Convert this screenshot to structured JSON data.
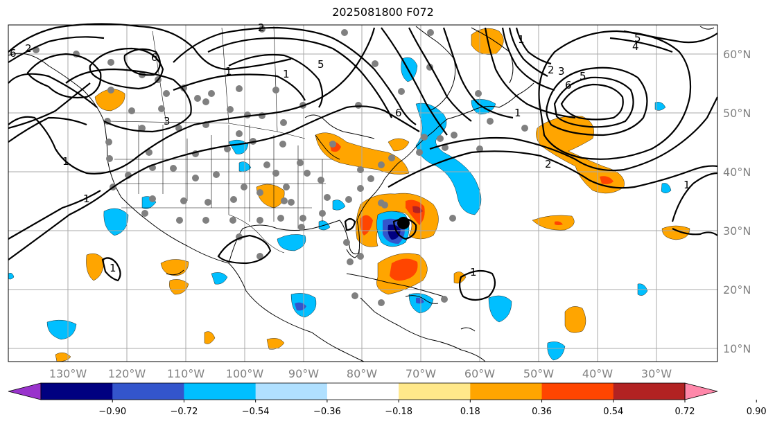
{
  "title": "2025081800 F072",
  "map": {
    "lon_labels": [
      "130°W",
      "120°W",
      "110°W",
      "100°W",
      "90°W",
      "80°W",
      "70°W",
      "60°W",
      "50°W",
      "40°W",
      "30°W"
    ],
    "lat_labels": [
      "60°N",
      "50°N",
      "40°N",
      "30°N",
      "20°N",
      "10°N"
    ],
    "contour_labels": [
      "6",
      "2",
      "6",
      "1",
      "3",
      "1",
      "5",
      "2",
      "1",
      "6",
      "1",
      "4",
      "5",
      "2",
      "3",
      "5",
      "6",
      "1",
      "2",
      "1",
      "1",
      "1",
      "1"
    ]
  },
  "colorbar": {
    "tick_labels": [
      "−0.90",
      "−0.72",
      "−0.54",
      "−0.36",
      "−0.18",
      "0.18",
      "0.36",
      "0.54",
      "0.72",
      "0.90"
    ],
    "colors": [
      "#9933cc",
      "#000080",
      "#3355cc",
      "#00bfff",
      "#b0e0ff",
      "#ffffff",
      "#ffe88a",
      "#ffa500",
      "#ff4500",
      "#b22222",
      "#ff88aa"
    ],
    "extend": "both"
  },
  "colors": {
    "orange": "#ffa500",
    "red": "#ff4500",
    "cyan": "#00bfff",
    "blue": "#3355cc",
    "navy": "#000080",
    "grey_dot": "#808080"
  }
}
